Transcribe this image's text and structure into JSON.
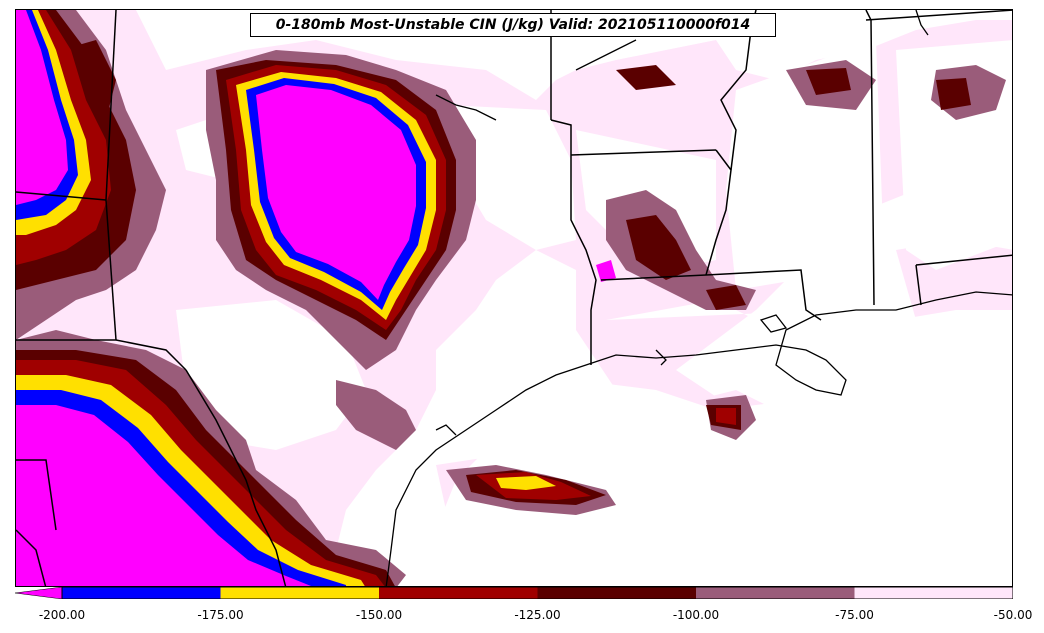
{
  "title": "0-180mb Most-Unstable CIN (J/kg) Valid: 202105110000f014",
  "colorbar": {
    "ticks": [
      "-200.00",
      "-175.00",
      "-150.00",
      "-125.00",
      "-100.00",
      "-75.00",
      "-50.00"
    ],
    "bins": [
      {
        "from": -200,
        "to": -175,
        "color": "#0000ff"
      },
      {
        "from": -175,
        "to": -150,
        "color": "#ffe000"
      },
      {
        "from": -150,
        "to": -125,
        "color": "#a00000"
      },
      {
        "from": -125,
        "to": -100,
        "color": "#5a0000"
      },
      {
        "from": -100,
        "to": -75,
        "color": "#9a5c7a"
      },
      {
        "from": -75,
        "to": -50,
        "color": "#ffe6fa"
      }
    ],
    "under_color": "#ff00ff"
  },
  "colors": {
    "magenta": "#ff00ff",
    "blue": "#0000ff",
    "yellow": "#ffe000",
    "red": "#a00000",
    "darkred": "#5a0000",
    "mauve": "#9a5c7a",
    "pink": "#ffe6fa",
    "border": "#000000"
  }
}
